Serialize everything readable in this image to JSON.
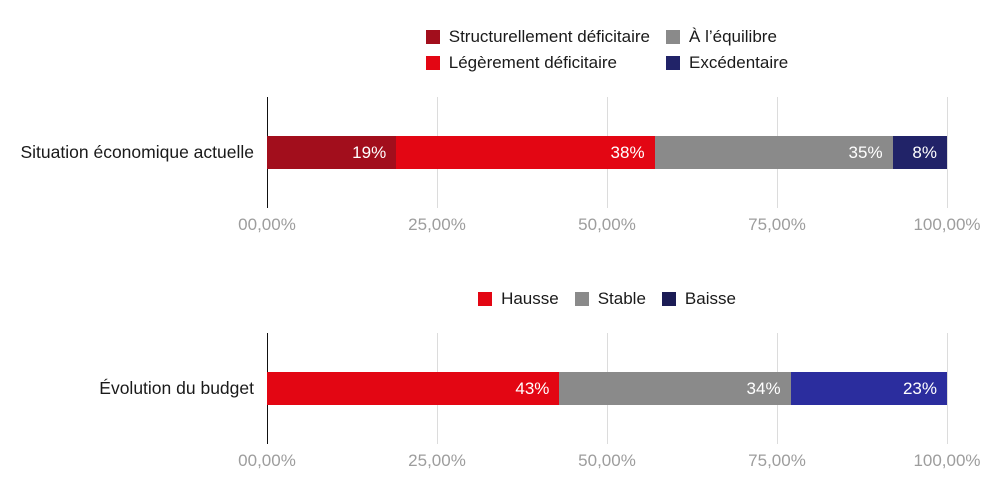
{
  "style": {
    "background": "#ffffff",
    "text_color": "#1a1a1a",
    "axis_label_color": "#9d9d9d",
    "gridline_color": "#dcdcdc",
    "axis_line_color": "#111111",
    "value_label_color": "#ffffff"
  },
  "chart_data": [
    {
      "id": "situation-economique",
      "type": "bar",
      "variant": "horizontal-stacked",
      "category": "Situation économique actuelle",
      "xlim": [
        0,
        100
      ],
      "grid": true,
      "legend": {
        "position": "top-center",
        "rows": 2
      },
      "series": [
        {
          "name": "Structurellement déficitaire",
          "value": 19,
          "label": "19%",
          "color": "#a20e1c",
          "textured": false
        },
        {
          "name": "Légèrement déficitaire",
          "value": 38,
          "label": "38%",
          "color": "#e30613",
          "textured": false
        },
        {
          "name": "À l’équilibre",
          "value": 35,
          "label": "35%",
          "color": "#8a8a8a",
          "textured": true
        },
        {
          "name": "Excédentaire",
          "value": 8,
          "label": "8%",
          "color": "#212368",
          "textured": false
        }
      ],
      "axis": {
        "ticks": [
          {
            "value": 0,
            "label": "00,00%"
          },
          {
            "value": 25,
            "label": "25,00%"
          },
          {
            "value": 50,
            "label": "50,00%"
          },
          {
            "value": 75,
            "label": "75,00%"
          },
          {
            "value": 100,
            "label": "100,00%"
          }
        ]
      }
    },
    {
      "id": "evolution-budget",
      "type": "bar",
      "variant": "horizontal-stacked",
      "category": "Évolution du budget",
      "xlim": [
        0,
        100
      ],
      "grid": true,
      "legend": {
        "position": "top-center",
        "rows": 1
      },
      "series": [
        {
          "name": "Hausse",
          "value": 43,
          "label": "43%",
          "color": "#e30613",
          "textured": false
        },
        {
          "name": "Stable",
          "value": 34,
          "label": "34%",
          "color": "#8a8a8a",
          "textured": true
        },
        {
          "name": "Baisse",
          "value": 23,
          "label": "23%",
          "color": "#2b2d9e",
          "legend_color": "#1b1c55",
          "textured": false
        }
      ],
      "axis": {
        "ticks": [
          {
            "value": 0,
            "label": "00,00%"
          },
          {
            "value": 25,
            "label": "25,00%"
          },
          {
            "value": 50,
            "label": "50,00%"
          },
          {
            "value": 75,
            "label": "75,00%"
          },
          {
            "value": 100,
            "label": "100,00%"
          }
        ]
      }
    }
  ]
}
